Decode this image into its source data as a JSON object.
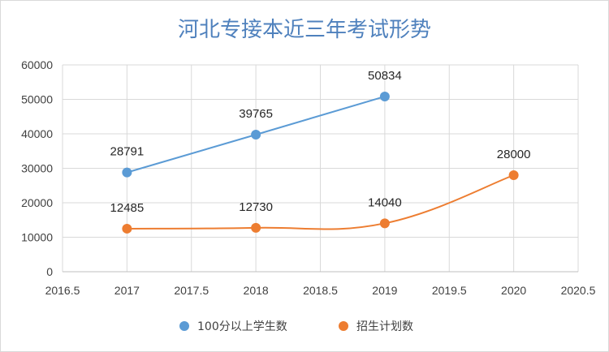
{
  "chart_data": {
    "type": "scatter",
    "title": "河北专接本近三年考试形势",
    "xlabel": "",
    "ylabel": "",
    "xlim": [
      2016.5,
      2020.5
    ],
    "ylim": [
      0,
      60000
    ],
    "x_ticks": [
      "2016.5",
      "2017",
      "2017.5",
      "2018",
      "2018.5",
      "2019",
      "2019.5",
      "2020",
      "2020.5"
    ],
    "y_ticks": [
      "0",
      "10000",
      "20000",
      "30000",
      "40000",
      "50000",
      "60000"
    ],
    "grid": true,
    "legend_position": "bottom",
    "series": [
      {
        "name": "100分以上学生数",
        "color": "#5b9bd5",
        "line": "straight",
        "x": [
          2017,
          2018,
          2019
        ],
        "y": [
          28791,
          39765,
          50834
        ],
        "labels": [
          "28791",
          "39765",
          "50834"
        ]
      },
      {
        "name": "招生计划数",
        "color": "#ed7d31",
        "line": "smooth",
        "x": [
          2017,
          2018,
          2019,
          2020
        ],
        "y": [
          12485,
          12730,
          14040,
          28000
        ],
        "labels": [
          "12485",
          "12730",
          "14040",
          "28000"
        ]
      }
    ]
  }
}
